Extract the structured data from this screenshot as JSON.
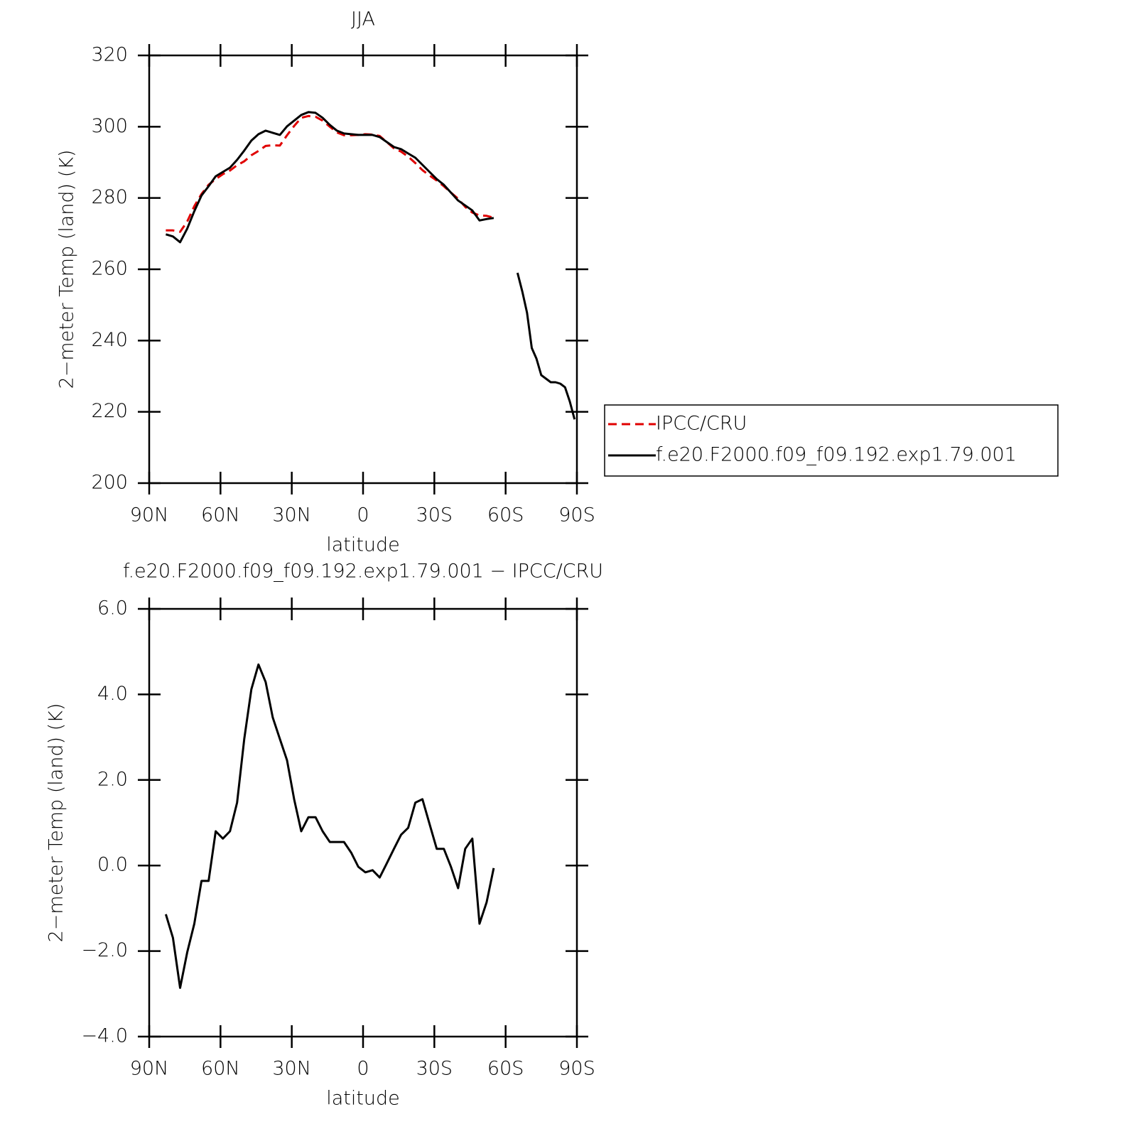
{
  "chart_data": [
    {
      "type": "line",
      "title": "JJA",
      "xlabel": "latitude",
      "ylabel": "2−meter Temp (land) (K)",
      "x": [
        83,
        80,
        77,
        74,
        71,
        68,
        65,
        62,
        59,
        56,
        53,
        50,
        47,
        44,
        41,
        38,
        35,
        32,
        29,
        26,
        23,
        20,
        17,
        14,
        11,
        8,
        5,
        2,
        -1,
        -4,
        -7,
        -10,
        -13,
        -16,
        -19,
        -22,
        -25,
        -28,
        -31,
        -34,
        -37,
        -40,
        -43,
        -46,
        -49,
        -52,
        -55,
        -58,
        -65,
        -67,
        -69,
        -71,
        -73,
        -75,
        -77,
        -79,
        -81,
        -83,
        -85,
        -87,
        -89
      ],
      "series": [
        {
          "name": "IPCC/CRU",
          "color": "#e00000",
          "dash": true,
          "values": [
            270.9,
            270.9,
            270.5,
            273.4,
            277.7,
            281.1,
            283.7,
            285.3,
            286.7,
            287.7,
            289.2,
            290.3,
            292.0,
            293.2,
            294.6,
            294.8,
            294.7,
            297.6,
            300.2,
            302.5,
            303.0,
            302.8,
            301.7,
            300.0,
            298.4,
            297.6,
            297.6,
            297.7,
            297.9,
            297.8,
            297.4,
            295.7,
            293.9,
            293.0,
            291.6,
            289.8,
            287.8,
            286.3,
            284.9,
            283.3,
            281.5,
            279.8,
            277.5,
            275.9,
            275.1,
            275.0,
            274.5,
            null,
            null,
            null,
            null,
            null,
            null,
            null,
            null,
            null,
            null,
            null,
            null,
            null,
            null
          ]
        },
        {
          "name": "f.e20.F2000.f09_f09.192.exp1.79.001",
          "color": "#000000",
          "dash": false,
          "values": [
            269.8,
            269.2,
            267.6,
            271.4,
            276.3,
            280.7,
            283.3,
            286.1,
            287.3,
            288.5,
            290.7,
            293.3,
            296.1,
            297.9,
            298.9,
            298.3,
            297.7,
            300.1,
            301.7,
            303.3,
            304.1,
            303.9,
            302.5,
            300.5,
            298.9,
            298.1,
            297.9,
            297.7,
            297.7,
            297.7,
            297.1,
            295.7,
            294.3,
            293.7,
            292.5,
            291.3,
            289.3,
            287.3,
            285.3,
            283.7,
            281.5,
            279.3,
            277.9,
            276.5,
            273.7,
            274.1,
            274.4,
            null,
            259.0,
            253.8,
            247.8,
            237.9,
            234.9,
            230.3,
            229.3,
            228.3,
            228.3,
            227.9,
            226.9,
            222.9,
            217.9
          ]
        }
      ],
      "xlim": [
        90,
        -90
      ],
      "xticks": [
        {
          "value": 90,
          "label": "90N"
        },
        {
          "value": 60,
          "label": "60N"
        },
        {
          "value": 30,
          "label": "30N"
        },
        0,
        {
          "value": -30,
          "label": "30S"
        },
        {
          "value": -60,
          "label": "60S"
        },
        {
          "value": -90,
          "label": "90S"
        }
      ],
      "ylim": [
        200,
        320
      ],
      "yticks": [
        200,
        220,
        240,
        260,
        280,
        300,
        320
      ],
      "legend": "right"
    },
    {
      "type": "line",
      "title": "f.e20.F2000.f09_f09.192.exp1.79.001 − IPCC/CRU",
      "xlabel": "latitude",
      "ylabel": "2−meter Temp (land) (K)",
      "x": [
        83,
        80,
        77,
        74,
        71,
        68,
        65,
        62,
        59,
        56,
        53,
        50,
        47,
        44,
        41,
        38,
        35,
        32,
        29,
        26,
        23,
        20,
        17,
        14,
        11,
        8,
        5,
        2,
        -1,
        -4,
        -7,
        -10,
        -13,
        -16,
        -19,
        -22,
        -25,
        -28,
        -31,
        -34,
        -37,
        -40,
        -43,
        -46,
        -49,
        -52,
        -55
      ],
      "values": [
        -1.14,
        -1.69,
        -2.86,
        -2.03,
        -1.36,
        -0.36,
        -0.36,
        0.8,
        0.63,
        0.8,
        1.47,
        2.96,
        4.12,
        4.7,
        4.29,
        3.46,
        2.96,
        2.46,
        1.55,
        0.8,
        1.13,
        1.13,
        0.8,
        0.55,
        0.55,
        0.55,
        0.3,
        -0.03,
        -0.16,
        -0.11,
        -0.28,
        0.05,
        0.39,
        0.72,
        0.88,
        1.47,
        1.55,
        0.97,
        0.39,
        0.39,
        -0.03,
        -0.53,
        0.39,
        0.63,
        -1.36,
        -0.86,
        -0.06
      ],
      "color": "#000000",
      "xlim": [
        90,
        -90
      ],
      "xticks": [
        {
          "value": 90,
          "label": "90N"
        },
        {
          "value": 60,
          "label": "60N"
        },
        {
          "value": 30,
          "label": "30N"
        },
        0,
        {
          "value": -30,
          "label": "30S"
        },
        {
          "value": -60,
          "label": "60S"
        },
        {
          "value": -90,
          "label": "90S"
        }
      ],
      "ylim": [
        -4,
        6
      ],
      "yticks": [
        {
          "value": -4,
          "label": "−4.0"
        },
        {
          "value": -2,
          "label": "−2.0"
        },
        {
          "value": 0,
          "label": "0.0"
        },
        {
          "value": 2,
          "label": "2.0"
        },
        {
          "value": 4,
          "label": "4.0"
        },
        {
          "value": 6,
          "label": "6.0"
        }
      ]
    }
  ]
}
